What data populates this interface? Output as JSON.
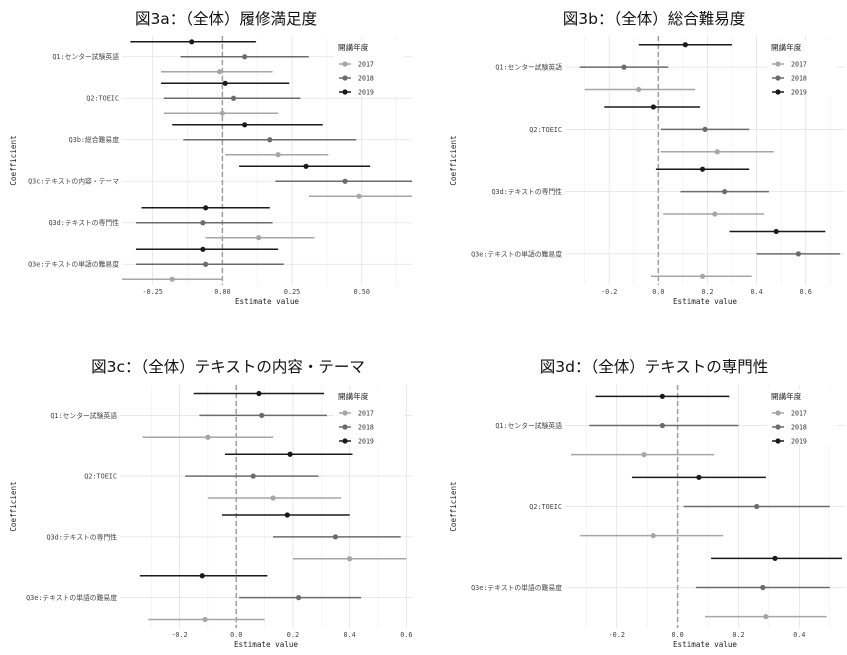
{
  "colors": {
    "2017": "#a6a6a6",
    "2018": "#6b6b6b",
    "2019": "#1a1a1a",
    "zero_line": "#9e9e9e",
    "grid_major": "#e2e2e2",
    "grid_minor": "#efefef"
  },
  "chart_data": [
    {
      "type": "coefficient-plot",
      "title": "図3a：（全体）履修満足度",
      "xlabel": "Estimate value",
      "ylabel": "Coefficient",
      "xlim": [
        -0.36,
        0.68
      ],
      "xticks": [
        -0.25,
        0.0,
        0.25,
        0.5
      ],
      "xtick_labels": [
        "-0.25",
        "0.00",
        "0.25",
        "0.50"
      ],
      "legend_title": "開講年度",
      "legend_position": "top-right",
      "years": [
        "2017",
        "2018",
        "2019"
      ],
      "coefficients": [
        {
          "label": "Q1:センター試験英語",
          "estimates": [
            {
              "year": "2017",
              "est": -0.01,
              "lo": -0.22,
              "hi": 0.18
            },
            {
              "year": "2018",
              "est": 0.08,
              "lo": -0.15,
              "hi": 0.31
            },
            {
              "year": "2019",
              "est": -0.11,
              "lo": -0.33,
              "hi": 0.12
            }
          ]
        },
        {
          "label": "Q2:TOEIC",
          "estimates": [
            {
              "year": "2017",
              "est": 0.0,
              "lo": -0.21,
              "hi": 0.2
            },
            {
              "year": "2018",
              "est": 0.04,
              "lo": -0.21,
              "hi": 0.28
            },
            {
              "year": "2019",
              "est": 0.01,
              "lo": -0.22,
              "hi": 0.24
            }
          ]
        },
        {
          "label": "Q3b:総合難易度",
          "estimates": [
            {
              "year": "2017",
              "est": 0.2,
              "lo": 0.01,
              "hi": 0.38
            },
            {
              "year": "2018",
              "est": 0.17,
              "lo": -0.14,
              "hi": 0.48
            },
            {
              "year": "2019",
              "est": 0.08,
              "lo": -0.18,
              "hi": 0.36
            }
          ]
        },
        {
          "label": "Q3c:テキストの内容・テーマ",
          "estimates": [
            {
              "year": "2017",
              "est": 0.49,
              "lo": 0.31,
              "hi": 0.68
            },
            {
              "year": "2018",
              "est": 0.44,
              "lo": 0.19,
              "hi": 0.68
            },
            {
              "year": "2019",
              "est": 0.3,
              "lo": 0.06,
              "hi": 0.53
            }
          ]
        },
        {
          "label": "Q3d:テキストの専門性",
          "estimates": [
            {
              "year": "2017",
              "est": 0.13,
              "lo": -0.06,
              "hi": 0.33
            },
            {
              "year": "2018",
              "est": -0.07,
              "lo": -0.31,
              "hi": 0.18
            },
            {
              "year": "2019",
              "est": -0.06,
              "lo": -0.29,
              "hi": 0.17
            }
          ]
        },
        {
          "label": "Q3e:テキストの単語の難易度",
          "estimates": [
            {
              "year": "2017",
              "est": -0.18,
              "lo": -0.36,
              "hi": 0.0
            },
            {
              "year": "2018",
              "est": -0.06,
              "lo": -0.31,
              "hi": 0.22
            },
            {
              "year": "2019",
              "est": -0.07,
              "lo": -0.31,
              "hi": 0.2
            }
          ]
        }
      ]
    },
    {
      "type": "coefficient-plot",
      "title": "図3b：（全体）総合難易度",
      "xlabel": "Estimate value",
      "ylabel": "Coefficient",
      "xlim": [
        -0.38,
        0.76
      ],
      "xticks": [
        -0.2,
        0.0,
        0.2,
        0.4,
        0.6
      ],
      "xtick_labels": [
        "-0.2",
        "0.0",
        "0.2",
        "0.4",
        "0.6"
      ],
      "legend_title": "開講年度",
      "legend_position": "top-right",
      "years": [
        "2017",
        "2018",
        "2019"
      ],
      "coefficients": [
        {
          "label": "Q1:センター試験英語",
          "estimates": [
            {
              "year": "2017",
              "est": -0.08,
              "lo": -0.3,
              "hi": 0.15
            },
            {
              "year": "2018",
              "est": -0.14,
              "lo": -0.32,
              "hi": 0.04
            },
            {
              "year": "2019",
              "est": 0.11,
              "lo": -0.08,
              "hi": 0.3
            }
          ]
        },
        {
          "label": "Q2:TOEIC",
          "estimates": [
            {
              "year": "2017",
              "est": 0.24,
              "lo": 0.01,
              "hi": 0.47
            },
            {
              "year": "2018",
              "est": 0.19,
              "lo": 0.01,
              "hi": 0.37
            },
            {
              "year": "2019",
              "est": -0.02,
              "lo": -0.22,
              "hi": 0.17
            }
          ]
        },
        {
          "label": "Q3d:テキストの専門性",
          "estimates": [
            {
              "year": "2017",
              "est": 0.23,
              "lo": 0.02,
              "hi": 0.43
            },
            {
              "year": "2018",
              "est": 0.27,
              "lo": 0.09,
              "hi": 0.45
            },
            {
              "year": "2019",
              "est": 0.18,
              "lo": -0.01,
              "hi": 0.37
            }
          ]
        },
        {
          "label": "Q3e:テキストの単語の難易度",
          "estimates": [
            {
              "year": "2017",
              "est": 0.18,
              "lo": -0.03,
              "hi": 0.38
            },
            {
              "year": "2018",
              "est": 0.57,
              "lo": 0.4,
              "hi": 0.74
            },
            {
              "year": "2019",
              "est": 0.48,
              "lo": 0.29,
              "hi": 0.68
            }
          ]
        }
      ]
    },
    {
      "type": "coefficient-plot",
      "title": "図3c：（全体）テキストの内容・テーマ",
      "xlabel": "Estimate value",
      "ylabel": "Coefficient",
      "xlim": [
        -0.41,
        0.62
      ],
      "xticks": [
        -0.2,
        0.0,
        0.2,
        0.4,
        0.6
      ],
      "xtick_labels": [
        "-0.2",
        "0.0",
        "0.2",
        "0.4",
        "0.6"
      ],
      "legend_title": "開講年度",
      "legend_position": "top-right",
      "years": [
        "2017",
        "2018",
        "2019"
      ],
      "coefficients": [
        {
          "label": "Q1:センター試験英語",
          "estimates": [
            {
              "year": "2017",
              "est": -0.1,
              "lo": -0.33,
              "hi": 0.13
            },
            {
              "year": "2018",
              "est": 0.09,
              "lo": -0.13,
              "hi": 0.32
            },
            {
              "year": "2019",
              "est": 0.08,
              "lo": -0.15,
              "hi": 0.31
            }
          ]
        },
        {
          "label": "Q2:TOEIC",
          "estimates": [
            {
              "year": "2017",
              "est": 0.13,
              "lo": -0.1,
              "hi": 0.37
            },
            {
              "year": "2018",
              "est": 0.06,
              "lo": -0.18,
              "hi": 0.29
            },
            {
              "year": "2019",
              "est": 0.19,
              "lo": -0.04,
              "hi": 0.41
            }
          ]
        },
        {
          "label": "Q3d:テキストの専門性",
          "estimates": [
            {
              "year": "2017",
              "est": 0.4,
              "lo": 0.2,
              "hi": 0.6
            },
            {
              "year": "2018",
              "est": 0.35,
              "lo": 0.13,
              "hi": 0.58
            },
            {
              "year": "2019",
              "est": 0.18,
              "lo": -0.05,
              "hi": 0.4
            }
          ]
        },
        {
          "label": "Q3e:テキストの単語の難易度",
          "estimates": [
            {
              "year": "2017",
              "est": -0.11,
              "lo": -0.31,
              "hi": 0.1
            },
            {
              "year": "2018",
              "est": 0.22,
              "lo": 0.01,
              "hi": 0.44
            },
            {
              "year": "2019",
              "est": -0.12,
              "lo": -0.34,
              "hi": 0.11
            }
          ]
        }
      ]
    },
    {
      "type": "coefficient-plot",
      "title": "図3d：（全体）テキストの専門性",
      "xlabel": "Estimate value",
      "ylabel": "Coefficient",
      "xlim": [
        -0.37,
        0.55
      ],
      "xticks": [
        -0.2,
        0.0,
        0.2,
        0.4
      ],
      "xtick_labels": [
        "-0.2",
        "0.0",
        "0.2",
        "0.4"
      ],
      "legend_title": "開講年度",
      "legend_position": "top-right",
      "years": [
        "2017",
        "2018",
        "2019"
      ],
      "coefficients": [
        {
          "label": "Q1:センター試験英語",
          "estimates": [
            {
              "year": "2017",
              "est": -0.11,
              "lo": -0.35,
              "hi": 0.12
            },
            {
              "year": "2018",
              "est": -0.05,
              "lo": -0.29,
              "hi": 0.2
            },
            {
              "year": "2019",
              "est": -0.05,
              "lo": -0.27,
              "hi": 0.17
            }
          ]
        },
        {
          "label": "Q2:TOEIC",
          "estimates": [
            {
              "year": "2017",
              "est": -0.08,
              "lo": -0.32,
              "hi": 0.15
            },
            {
              "year": "2018",
              "est": 0.26,
              "lo": 0.02,
              "hi": 0.5
            },
            {
              "year": "2019",
              "est": 0.07,
              "lo": -0.15,
              "hi": 0.29
            }
          ]
        },
        {
          "label": "Q3e:テキストの単語の難易度",
          "estimates": [
            {
              "year": "2017",
              "est": 0.29,
              "lo": 0.09,
              "hi": 0.49
            },
            {
              "year": "2018",
              "est": 0.28,
              "lo": 0.06,
              "hi": 0.5
            },
            {
              "year": "2019",
              "est": 0.32,
              "lo": 0.11,
              "hi": 0.54
            }
          ]
        }
      ]
    }
  ]
}
